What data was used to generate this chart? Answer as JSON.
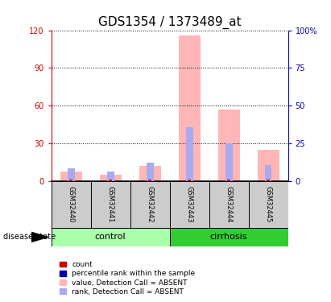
{
  "title": "GDS1354 / 1373489_at",
  "samples": [
    "GSM32440",
    "GSM32441",
    "GSM32442",
    "GSM32443",
    "GSM32444",
    "GSM32445"
  ],
  "group_labels": [
    "control",
    "cirrhosis"
  ],
  "group_colors": [
    "#aaffaa",
    "#33cc33"
  ],
  "pink_bars": [
    8.0,
    5.0,
    12.0,
    116.0,
    57.0,
    25.0
  ],
  "blue_bars": [
    10.5,
    8.0,
    14.5,
    43.0,
    30.0,
    12.5
  ],
  "red_marks": [
    1.0,
    1.0,
    1.0,
    1.0,
    1.0,
    1.0
  ],
  "ylim_left": [
    0,
    120
  ],
  "ylim_right": [
    0,
    100
  ],
  "yticks_left": [
    0,
    30,
    60,
    90,
    120
  ],
  "yticks_right": [
    0,
    25,
    50,
    75,
    100
  ],
  "ytick_labels_right": [
    "0",
    "25",
    "50",
    "75",
    "100%"
  ],
  "pink_color": "#ffb6b6",
  "blue_color": "#aaaaee",
  "red_color": "#cc0000",
  "dark_blue_color": "#0000aa",
  "left_axis_color": "#cc0000",
  "right_axis_color": "#0000aa",
  "legend_items": [
    {
      "label": "count",
      "color": "#cc0000"
    },
    {
      "label": "percentile rank within the sample",
      "color": "#0000aa"
    },
    {
      "label": "value, Detection Call = ABSENT",
      "color": "#ffb6b6"
    },
    {
      "label": "rank, Detection Call = ABSENT",
      "color": "#aaaaee"
    }
  ],
  "disease_state_label": "disease state",
  "tick_label_fontsize": 7,
  "title_fontsize": 11,
  "sample_label_fontsize": 6,
  "group_label_fontsize": 8
}
